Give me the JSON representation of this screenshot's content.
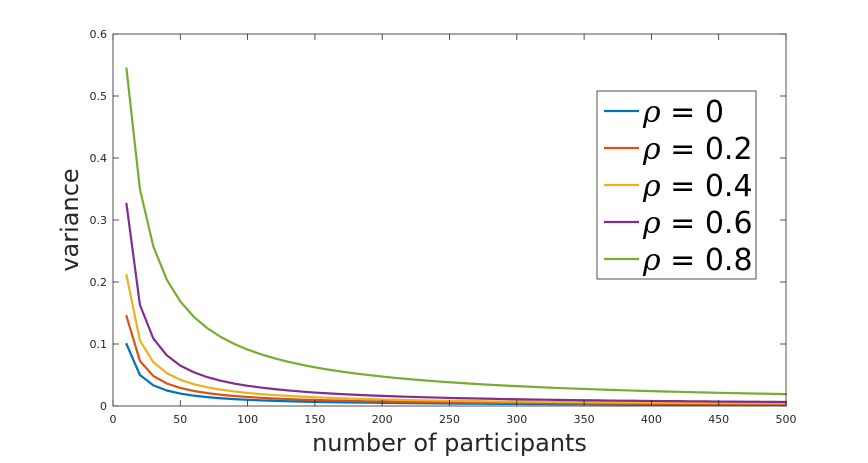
{
  "chart_data": {
    "type": "line",
    "title": "",
    "xlabel": "number of participants",
    "ylabel": "variance",
    "xlim": [
      0,
      500
    ],
    "ylim": [
      0,
      0.6
    ],
    "xticks": [
      "0",
      "50",
      "100",
      "150",
      "200",
      "250",
      "300",
      "350",
      "400",
      "450",
      "500"
    ],
    "yticks": [
      "0",
      "0.1",
      "0.2",
      "0.3",
      "0.4",
      "0.5",
      "0.6"
    ],
    "grid": false,
    "legend_position": "top-right",
    "x": [
      10,
      20,
      30,
      40,
      50,
      60,
      70,
      80,
      90,
      100,
      110,
      120,
      130,
      140,
      150,
      160,
      170,
      180,
      190,
      200,
      210,
      220,
      230,
      240,
      250,
      260,
      270,
      280,
      290,
      300,
      310,
      320,
      330,
      340,
      350,
      360,
      370,
      380,
      390,
      400,
      410,
      420,
      430,
      440,
      450,
      460,
      470,
      480,
      490,
      500
    ],
    "series": [
      {
        "name_prefix": "ρ",
        "name_suffix": " = 0",
        "color": "#0072BD",
        "values": [
          0.1,
          0.05,
          0.0333,
          0.025,
          0.02,
          0.0167,
          0.0143,
          0.0125,
          0.0111,
          0.01,
          0.0091,
          0.0083,
          0.0077,
          0.0071,
          0.0067,
          0.0063,
          0.0059,
          0.0056,
          0.0053,
          0.005,
          0.0048,
          0.0045,
          0.0043,
          0.0042,
          0.004,
          0.0038,
          0.0037,
          0.0036,
          0.0034,
          0.0033,
          0.0032,
          0.0031,
          0.003,
          0.0029,
          0.0029,
          0.0028,
          0.0027,
          0.0026,
          0.0026,
          0.0025,
          0.0024,
          0.0024,
          0.0023,
          0.0023,
          0.0022,
          0.0022,
          0.0021,
          0.0021,
          0.002,
          0.002
        ]
      },
      {
        "name_prefix": "ρ",
        "name_suffix": " = 0.2",
        "color": "#D95319",
        "values": [
          0.1453,
          0.0726,
          0.0484,
          0.0363,
          0.0291,
          0.0242,
          0.0208,
          0.0182,
          0.0161,
          0.0145,
          0.0132,
          0.0121,
          0.0112,
          0.0104,
          0.0097,
          0.0091,
          0.0085,
          0.0081,
          0.0076,
          0.0073,
          0.0069,
          0.0066,
          0.0063,
          0.0061,
          0.0058,
          0.0056,
          0.0054,
          0.0052,
          0.005,
          0.0048,
          0.0047,
          0.0045,
          0.0044,
          0.0043,
          0.0042,
          0.004,
          0.0039,
          0.0038,
          0.0037,
          0.0036,
          0.0035,
          0.0035,
          0.0034,
          0.0033,
          0.0032,
          0.0032,
          0.0031,
          0.003,
          0.003,
          0.0029
        ]
      },
      {
        "name_prefix": "ρ",
        "name_suffix": " = 0.4",
        "color": "#EDB120",
        "values": [
          0.2114,
          0.1057,
          0.0705,
          0.0529,
          0.0423,
          0.0352,
          0.0302,
          0.0264,
          0.0235,
          0.0211,
          0.0192,
          0.0176,
          0.0163,
          0.0151,
          0.0141,
          0.0132,
          0.0124,
          0.0117,
          0.0111,
          0.0106,
          0.0101,
          0.0096,
          0.0092,
          0.0088,
          0.0085,
          0.0081,
          0.0078,
          0.0076,
          0.0073,
          0.007,
          0.0068,
          0.0066,
          0.0064,
          0.0062,
          0.006,
          0.0059,
          0.0057,
          0.0056,
          0.0054,
          0.0053,
          0.0052,
          0.005,
          0.0049,
          0.0048,
          0.0047,
          0.0046,
          0.0045,
          0.0044,
          0.0043,
          0.0042
        ]
      },
      {
        "name_prefix": "ρ",
        "name_suffix": " = 0.6",
        "color": "#7E2F8E",
        "values": [
          0.3262,
          0.1631,
          0.1087,
          0.0816,
          0.0652,
          0.0544,
          0.0466,
          0.0408,
          0.0362,
          0.0326,
          0.0297,
          0.0272,
          0.0251,
          0.0233,
          0.0217,
          0.0204,
          0.0192,
          0.0181,
          0.0172,
          0.0163,
          0.0155,
          0.0148,
          0.0142,
          0.0136,
          0.013,
          0.0125,
          0.0121,
          0.0117,
          0.0112,
          0.0109,
          0.0105,
          0.0102,
          0.0099,
          0.0096,
          0.0093,
          0.0091,
          0.0088,
          0.0086,
          0.0084,
          0.0082,
          0.008,
          0.0078,
          0.0076,
          0.0074,
          0.0072,
          0.0071,
          0.0069,
          0.0068,
          0.0067,
          0.0065
        ]
      },
      {
        "name_prefix": "ρ",
        "name_suffix": " = 0.8",
        "color": "#77AC30",
        "values": [
          0.5444,
          0.3495,
          0.2571,
          0.2036,
          0.1686,
          0.1439,
          0.1256,
          0.1115,
          0.1002,
          0.091,
          0.0834,
          0.0769,
          0.0714,
          0.0666,
          0.0624,
          0.0587,
          0.0554,
          0.0525,
          0.0499,
          0.0475,
          0.0453,
          0.0433,
          0.0415,
          0.0398,
          0.0383,
          0.0369,
          0.0355,
          0.0343,
          0.0331,
          0.032,
          0.031,
          0.03,
          0.0291,
          0.0283,
          0.0275,
          0.0267,
          0.026,
          0.0253,
          0.0246,
          0.024,
          0.0234,
          0.0229,
          0.0223,
          0.0218,
          0.0213,
          0.0209,
          0.0204,
          0.02,
          0.0196,
          0.0192
        ]
      }
    ]
  }
}
